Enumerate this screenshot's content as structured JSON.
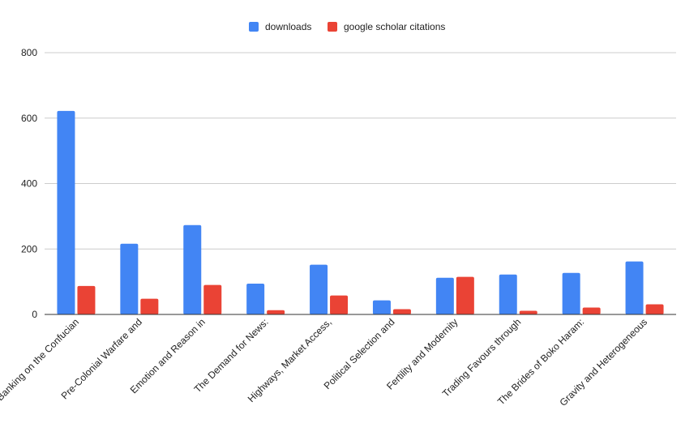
{
  "chart_data": {
    "type": "bar",
    "title": "",
    "xlabel": "",
    "ylabel": "",
    "ylim": [
      0,
      800
    ],
    "yticks": [
      0,
      200,
      400,
      600,
      800
    ],
    "grid": true,
    "legend_position": "top-center",
    "categories": [
      "Banking on the Confucian",
      "Pre-Colonial Warfare and",
      "Emotion and Reason in",
      "The Demand for News:",
      "Highways, Market Access,",
      "Political Selection and",
      "Fertility and Modernity",
      "Trading Favours through",
      "The Brides of Boko Haram:",
      "Gravity and Heterogeneous"
    ],
    "series": [
      {
        "name": "downloads",
        "color": "#4285f4",
        "values": [
          622,
          216,
          273,
          94,
          152,
          43,
          112,
          122,
          127,
          162
        ]
      },
      {
        "name": "google scholar citations",
        "color": "#ea4335",
        "values": [
          87,
          48,
          90,
          13,
          58,
          16,
          115,
          11,
          21,
          31
        ]
      }
    ]
  }
}
